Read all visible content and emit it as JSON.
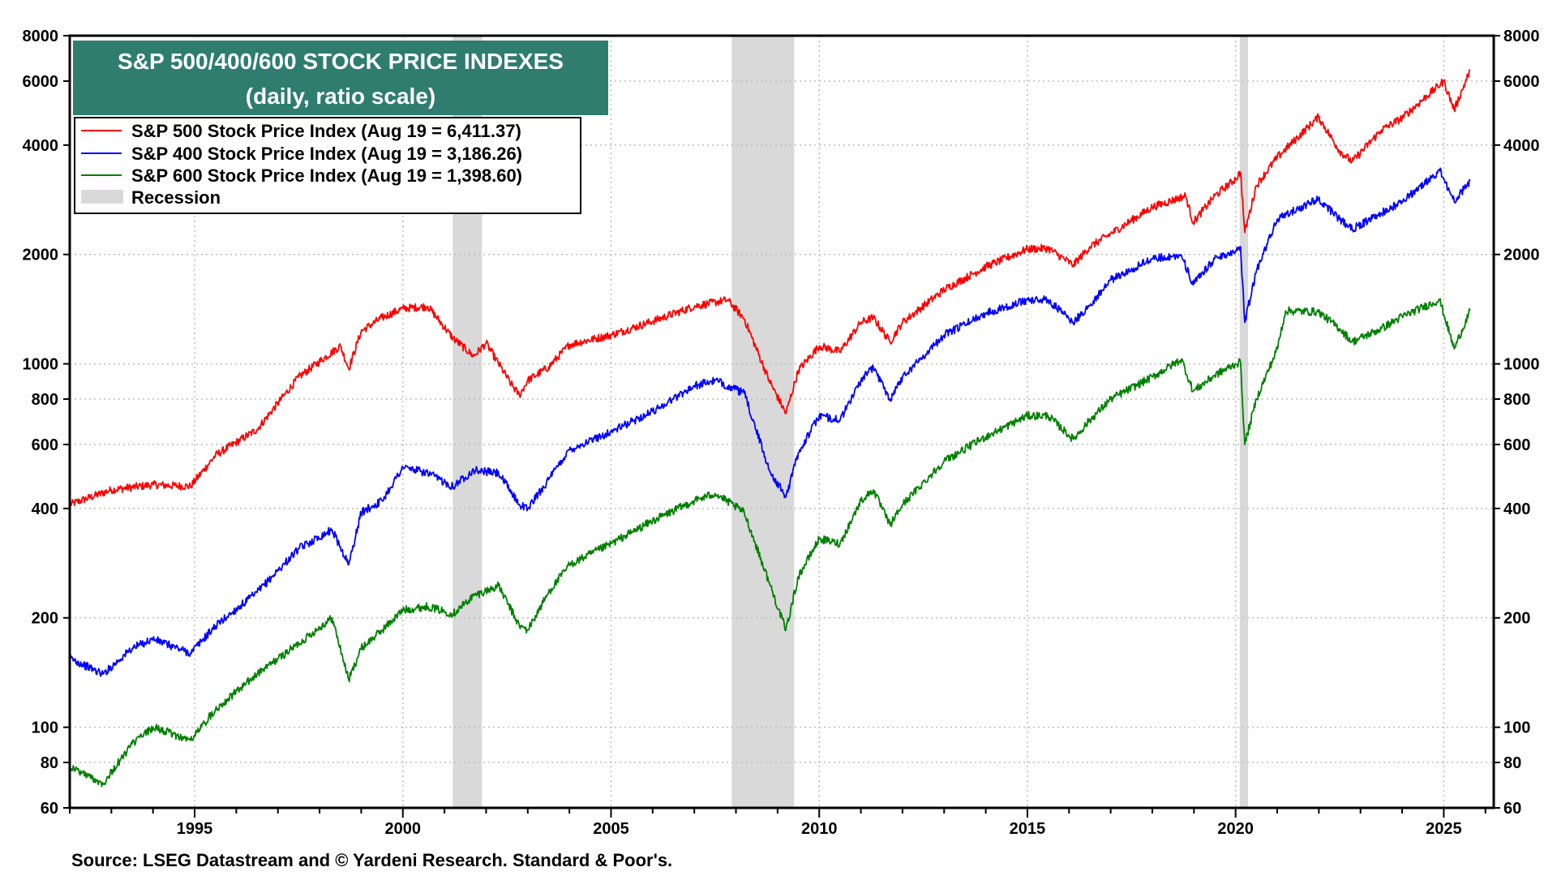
{
  "chart_data": {
    "type": "line",
    "title": "S&P 500/400/600 STOCK PRICE INDEXES",
    "subtitle": "(daily, ratio scale)",
    "title_bg_color": "#2e7d6f",
    "y_scale": "log",
    "ylim": [
      60,
      8000
    ],
    "xlim": [
      1992.0,
      2026.2
    ],
    "y_ticks": [
      60,
      80,
      100,
      200,
      400,
      600,
      800,
      1000,
      2000,
      4000,
      6000,
      8000
    ],
    "y_tick_labels": [
      "60",
      "80",
      "100",
      "200",
      "400",
      "600",
      "800",
      "1000",
      "2000",
      "4000",
      "6000",
      "8000"
    ],
    "x_ticks": [
      1995,
      2000,
      2005,
      2010,
      2015,
      2020,
      2025
    ],
    "x_tick_labels": [
      "1995",
      "2000",
      "2005",
      "2010",
      "2015",
      "2020",
      "2025"
    ],
    "grid": true,
    "legend_position": "top-left",
    "recessions": [
      {
        "start": 2001.2,
        "end": 2001.9
      },
      {
        "start": 2007.9,
        "end": 2009.4
      },
      {
        "start": 2020.1,
        "end": 2020.3
      }
    ],
    "recession_label": "Recession",
    "recession_color": "#d9d9d9",
    "series": [
      {
        "name": "S&P 500 Stock Price Index (Aug 19 = 6,411.37)",
        "color": "#ff0000",
        "x": [
          1992.0,
          1993.0,
          1994.0,
          1994.9,
          1995.5,
          1996.5,
          1997.5,
          1998.5,
          1998.7,
          1999.0,
          1999.5,
          2000.0,
          2000.6,
          2001.2,
          2001.7,
          2002.0,
          2002.6,
          2002.8,
          2003.0,
          2003.5,
          2004.0,
          2005.0,
          2006.0,
          2007.0,
          2007.8,
          2008.2,
          2008.8,
          2009.2,
          2009.5,
          2010.0,
          2010.5,
          2011.0,
          2011.3,
          2011.7,
          2012.0,
          2013.0,
          2014.0,
          2015.0,
          2015.5,
          2016.1,
          2016.5,
          2017.0,
          2018.0,
          2018.8,
          2018.98,
          2019.5,
          2020.0,
          2020.12,
          2020.22,
          2020.5,
          2021.0,
          2021.99,
          2022.5,
          2022.8,
          2023.5,
          2024.0,
          2025.0,
          2025.25,
          2025.63
        ],
        "y": [
          410,
          450,
          465,
          460,
          560,
          660,
          920,
          1120,
          970,
          1230,
          1340,
          1420,
          1440,
          1180,
          1050,
          1140,
          880,
          820,
          900,
          980,
          1130,
          1200,
          1310,
          1440,
          1500,
          1330,
          900,
          730,
          960,
          1120,
          1080,
          1300,
          1340,
          1150,
          1300,
          1600,
          1850,
          2070,
          2080,
          1870,
          2100,
          2280,
          2700,
          2900,
          2450,
          2900,
          3230,
          3370,
          2300,
          3100,
          3700,
          4780,
          3850,
          3600,
          4400,
          4750,
          6000,
          5000,
          6411
        ]
      },
      {
        "name": "S&P 400 Stock Price Index (Aug 19 = 3,186.26)",
        "color": "#0000ff",
        "x": [
          1992.0,
          1992.8,
          1993.5,
          1994.0,
          1994.9,
          1995.5,
          1996.5,
          1997.5,
          1998.3,
          1998.7,
          1999.0,
          1999.5,
          2000.0,
          2000.6,
          2001.2,
          2001.7,
          2002.3,
          2002.8,
          2003.0,
          2003.5,
          2004.0,
          2005.0,
          2006.0,
          2007.0,
          2007.5,
          2008.2,
          2008.8,
          2009.2,
          2009.5,
          2010.0,
          2010.5,
          2011.0,
          2011.3,
          2011.7,
          2012.0,
          2013.0,
          2014.0,
          2015.0,
          2015.5,
          2016.1,
          2016.5,
          2017.0,
          2018.0,
          2018.7,
          2018.98,
          2019.5,
          2020.0,
          2020.12,
          2020.22,
          2020.5,
          2021.0,
          2021.99,
          2022.5,
          2022.8,
          2023.5,
          2024.0,
          2024.9,
          2025.25,
          2025.63
        ],
        "y": [
          155,
          140,
          165,
          175,
          160,
          190,
          235,
          310,
          350,
          280,
          390,
          420,
          520,
          500,
          460,
          510,
          500,
          410,
          400,
          480,
          580,
          650,
          740,
          870,
          900,
          830,
          510,
          430,
          570,
          720,
          700,
          900,
          980,
          800,
          920,
          1200,
          1380,
          1500,
          1500,
          1300,
          1450,
          1700,
          1950,
          1990,
          1650,
          1950,
          2050,
          2100,
          1300,
          1800,
          2500,
          2850,
          2500,
          2350,
          2600,
          2800,
          3400,
          2800,
          3186
        ]
      },
      {
        "name": "S&P 600 Stock Price Index (Aug 19 = 1,398.60)",
        "color": "#008000",
        "x": [
          1992.0,
          1992.8,
          1993.5,
          1994.0,
          1994.9,
          1995.5,
          1996.5,
          1997.5,
          1998.3,
          1998.7,
          1999.0,
          1999.5,
          2000.0,
          2000.6,
          2001.2,
          2001.7,
          2002.3,
          2002.8,
          2003.0,
          2003.5,
          2004.0,
          2005.0,
          2006.0,
          2007.0,
          2007.5,
          2008.2,
          2008.8,
          2009.2,
          2009.5,
          2010.0,
          2010.5,
          2011.0,
          2011.3,
          2011.7,
          2012.0,
          2013.0,
          2014.0,
          2015.0,
          2015.5,
          2016.1,
          2016.5,
          2017.0,
          2018.0,
          2018.7,
          2018.98,
          2019.5,
          2020.0,
          2020.12,
          2020.22,
          2020.5,
          2021.0,
          2021.2,
          2021.99,
          2022.5,
          2022.8,
          2023.5,
          2024.0,
          2024.9,
          2025.25,
          2025.63
        ],
        "y": [
          78,
          70,
          90,
          100,
          92,
          112,
          140,
          170,
          200,
          135,
          165,
          185,
          210,
          215,
          205,
          230,
          245,
          190,
          185,
          235,
          280,
          320,
          370,
          420,
          440,
          390,
          250,
          185,
          260,
          330,
          320,
          420,
          450,
          360,
          410,
          540,
          630,
          720,
          720,
          620,
          700,
          800,
          920,
          1030,
          840,
          930,
          1000,
          1010,
          600,
          800,
          1100,
          1400,
          1390,
          1250,
          1150,
          1250,
          1350,
          1500,
          1100,
          1398
        ]
      }
    ]
  },
  "source": "Source: LSEG Datastream and © Yardeni Research. Standard & Poor's."
}
